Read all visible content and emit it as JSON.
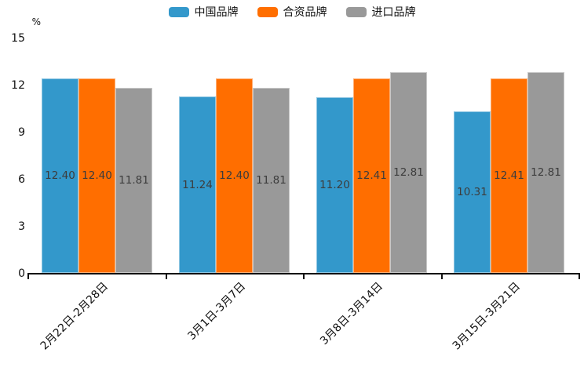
{
  "chart_data": {
    "type": "bar",
    "title": "",
    "unit_label": "%",
    "xlabel": "",
    "ylabel": "%",
    "categories": [
      "2月22日-2月28日",
      "3月1日-3月7日",
      "3月8日-3月14日",
      "3月15日-3月21日"
    ],
    "series": [
      {
        "name": "中国品牌",
        "color": "#3398CB",
        "values": [
          12.4,
          11.24,
          11.2,
          10.31
        ]
      },
      {
        "name": "合资品牌",
        "color": "#FF6E00",
        "values": [
          12.4,
          12.4,
          12.41,
          12.41
        ]
      },
      {
        "name": "进口品牌",
        "color": "#999999",
        "values": [
          11.81,
          11.81,
          12.81,
          12.81
        ]
      }
    ],
    "value_label_format": "2-decimals",
    "yticks": [
      0,
      3,
      6,
      9,
      12,
      15
    ],
    "ylim": [
      0,
      15
    ],
    "grid": false,
    "legend_position": "top-center",
    "value_labels_position": "inside-center",
    "colors": {
      "axis": "#111111",
      "value_label_text": "#3C3C3C",
      "background": "#FFFFFF"
    }
  }
}
